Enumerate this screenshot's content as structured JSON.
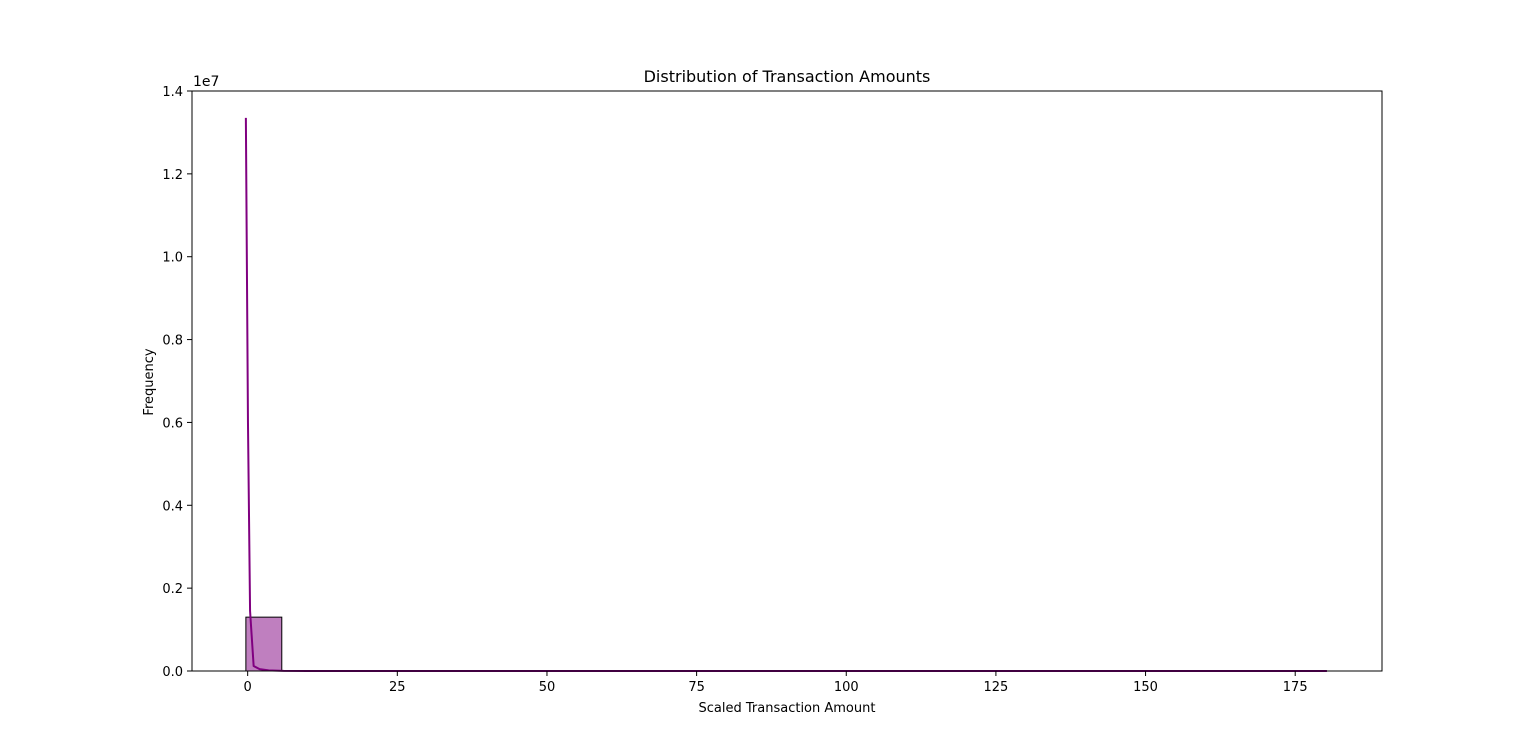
{
  "chart_data": {
    "type": "bar",
    "title": "Distribution of Transaction Amounts",
    "xlabel": "Scaled Transaction Amount",
    "ylabel": "Frequency",
    "y_offset_label": "1e7",
    "xlim": [
      -9.3,
      189.5
    ],
    "ylim": [
      0,
      14000000
    ],
    "x_ticks": [
      0,
      25,
      50,
      75,
      100,
      125,
      150,
      175
    ],
    "y_ticks": [
      0,
      2000000,
      4000000,
      6000000,
      8000000,
      10000000,
      12000000,
      14000000
    ],
    "y_tick_labels": [
      "0.0",
      "0.2",
      "0.4",
      "0.6",
      "0.8",
      "1.0",
      "1.2",
      "1.4"
    ],
    "grid": false,
    "bar_color": "#BF7FBF",
    "bar_edge": "#000000",
    "kde_color": "#800080",
    "histogram": [
      {
        "x0": -0.3,
        "x1": 5.7,
        "count": 1300000
      }
    ],
    "kde": [
      {
        "x": -0.3,
        "y": 13350000
      },
      {
        "x": 0.05,
        "y": 6000000
      },
      {
        "x": 0.4,
        "y": 1450000
      },
      {
        "x": 1.0,
        "y": 120000
      },
      {
        "x": 2.0,
        "y": 45000
      },
      {
        "x": 3.5,
        "y": 15000
      },
      {
        "x": 6.0,
        "y": 3000
      },
      {
        "x": 10.0,
        "y": 0
      },
      {
        "x": 180.3,
        "y": 0
      }
    ]
  }
}
